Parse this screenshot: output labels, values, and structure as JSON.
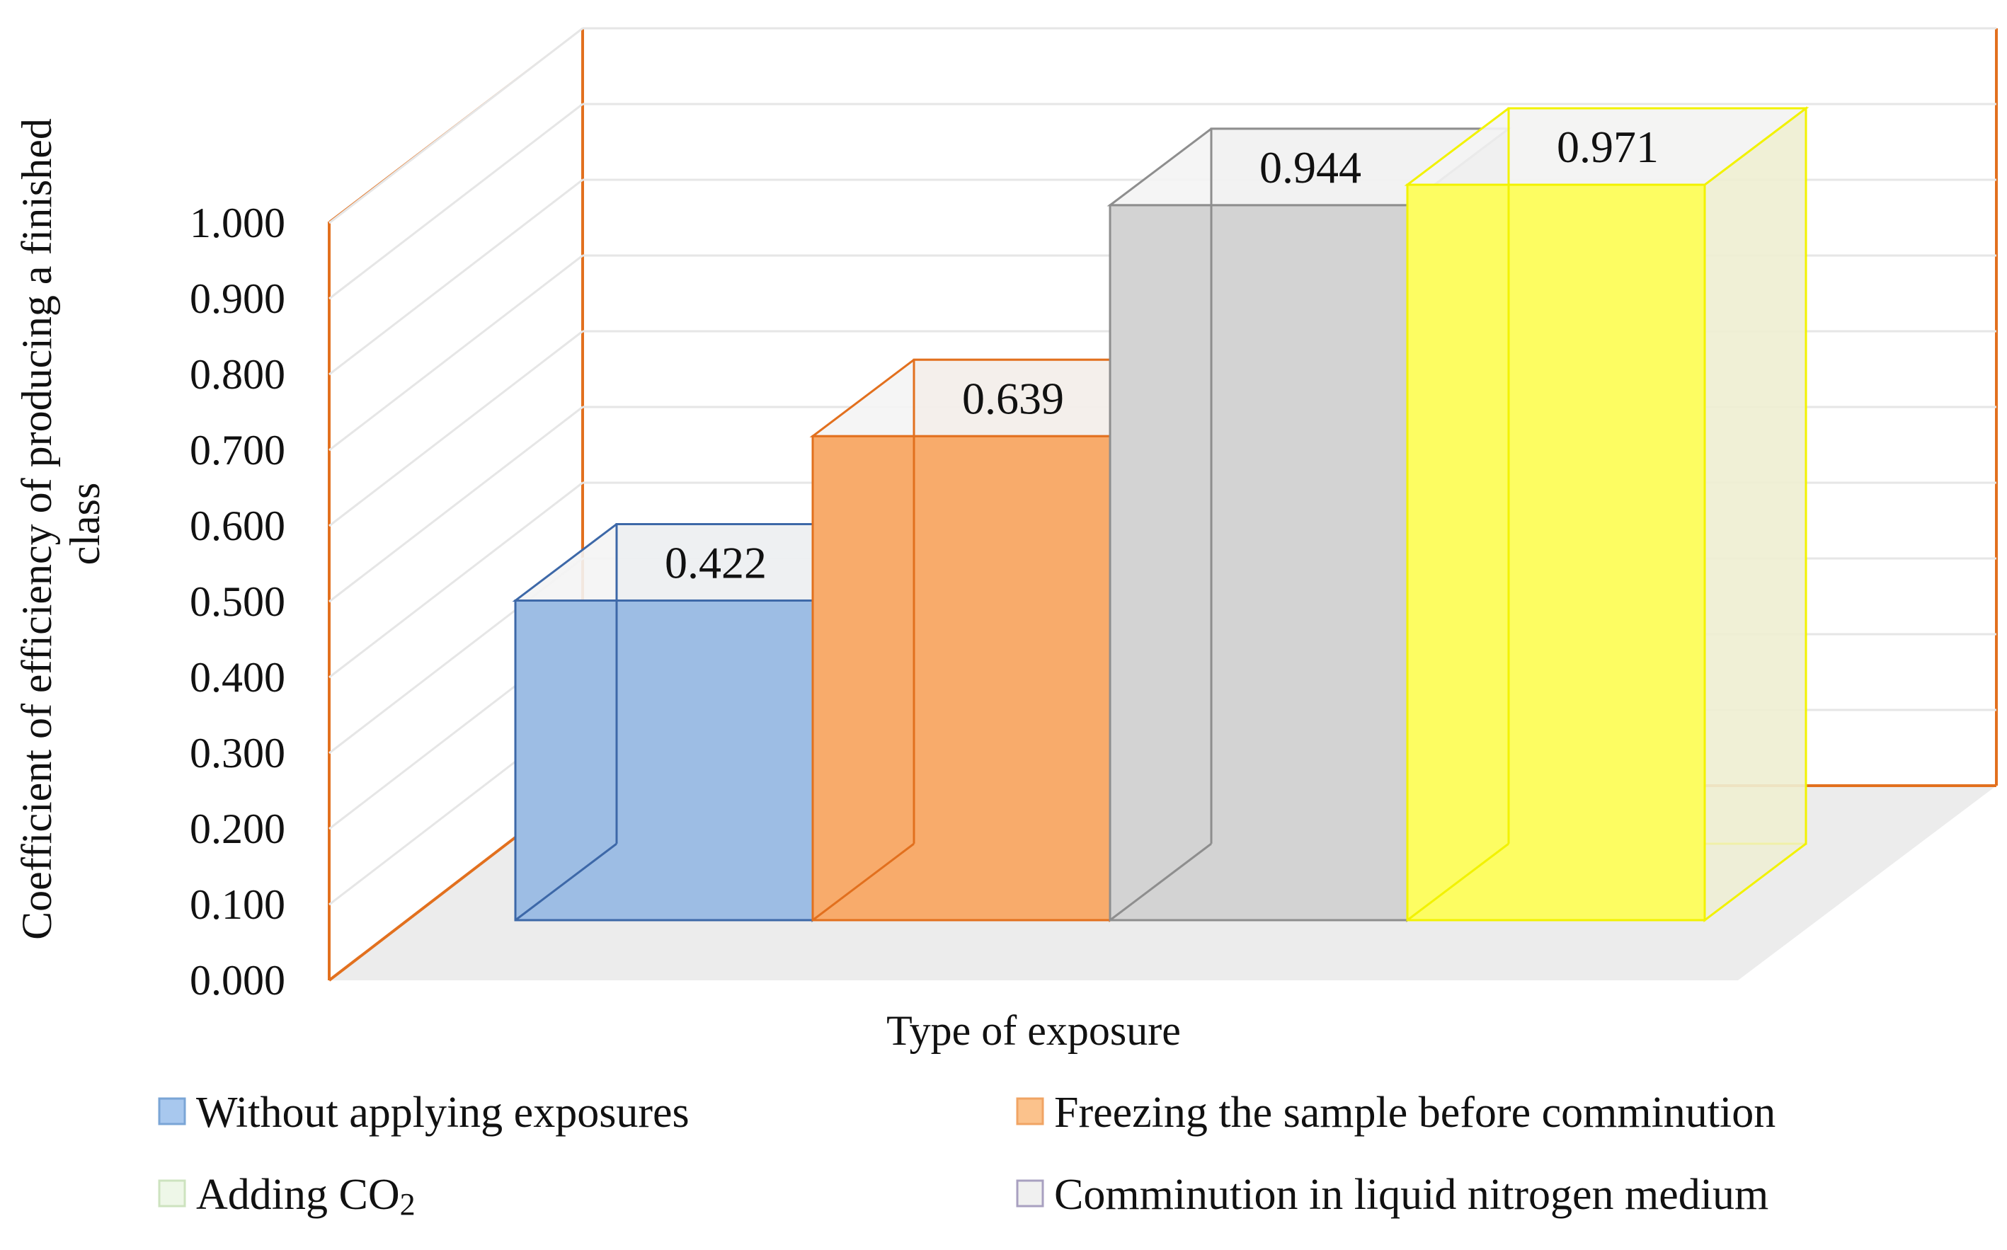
{
  "chart_data": {
    "type": "bar",
    "style": "3d",
    "title": "",
    "xlabel": "Type of exposure",
    "ylabel": "Coefficient of efficiency of producing a finished class",
    "ylim": [
      0,
      1.0
    ],
    "y_ticks": [
      "0.000",
      "0.100",
      "0.200",
      "0.300",
      "0.400",
      "0.500",
      "0.600",
      "0.700",
      "0.800",
      "0.900",
      "1.000"
    ],
    "series": [
      {
        "name": "Without applying exposures",
        "value": 0.422,
        "label": "0.422",
        "face": "#9dbde4",
        "side": "#7f9fc8",
        "stroke": "#3d68a8"
      },
      {
        "name": "Freezing the sample before comminution",
        "value": 0.639,
        "label": "0.639",
        "face": "#f8ab6b",
        "side": "#e88c4a",
        "stroke": "#e2701e"
      },
      {
        "name": "Comminution in liquid nitrogen medium",
        "value": 0.944,
        "label": "0.944",
        "face": "#d3d3d3",
        "side": "#c6c6c6",
        "stroke": "#8e8e8e"
      },
      {
        "name": "Adding CO2",
        "value": 0.971,
        "label": "0.971",
        "face": "#fdfd62",
        "side": "#efefd2",
        "stroke": "#f2f200"
      }
    ],
    "legend": {
      "placement": "bottom",
      "items": [
        {
          "label": "Without applying exposures",
          "color": "#a8c8ee",
          "border": "#7aa5d6"
        },
        {
          "label": "Freezing the sample before comminution",
          "color": "#fbc28c",
          "border": "#f0a464"
        },
        {
          "label": "Adding CO",
          "subscript": "2",
          "color": "#eef7e8",
          "border": "#cde3bf"
        },
        {
          "label": "Comminution in liquid nitrogen medium",
          "color": "#f0f0f0",
          "border": "#a8a0c0"
        }
      ]
    },
    "colors": {
      "axis_wall": "#e2701e",
      "floor": "#ececec",
      "grid": "#e6e6e6"
    }
  }
}
